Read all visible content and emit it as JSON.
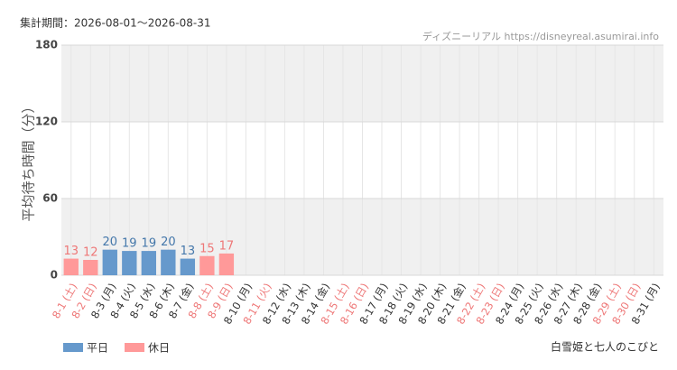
{
  "chart_data": {
    "type": "bar",
    "title": "集計期間：2026-08-01～2026-08-31",
    "source": "ディズニーリアル https://disneyreal.asumirai.info",
    "y_label": "平均待ち時間（分）",
    "attraction": "白雪姫と七人のこびと",
    "categories": [
      "8-1 (土)",
      "8-2 (日)",
      "8-3 (月)",
      "8-4 (火)",
      "8-5 (水)",
      "8-6 (木)",
      "8-7 (金)",
      "8-8 (土)",
      "8-9 (日)",
      "8-10 (月)",
      "8-11 (火)",
      "8-12 (水)",
      "8-13 (木)",
      "8-14 (金)",
      "8-15 (土)",
      "8-16 (日)",
      "8-17 (月)",
      "8-18 (火)",
      "8-19 (水)",
      "8-20 (木)",
      "8-21 (金)",
      "8-22 (土)",
      "8-23 (日)",
      "8-24 (月)",
      "8-25 (火)",
      "8-26 (水)",
      "8-27 (木)",
      "8-28 (金)",
      "8-29 (土)",
      "8-30 (日)",
      "8-31 (月)"
    ],
    "category_colors": [
      "#ee7777",
      "#ee7777",
      "#333333",
      "#333333",
      "#333333",
      "#333333",
      "#333333",
      "#ee7777",
      "#ee7777",
      "#333333",
      "#ee7777",
      "#333333",
      "#333333",
      "#333333",
      "#ee7777",
      "#ee7777",
      "#333333",
      "#333333",
      "#333333",
      "#333333",
      "#333333",
      "#ee7777",
      "#ee7777",
      "#333333",
      "#333333",
      "#333333",
      "#333333",
      "#333333",
      "#ee7777",
      "#ee7777",
      "#333333"
    ],
    "series": [
      {
        "name": "平日",
        "color": "#6699cc",
        "label_color": "#4477aa",
        "values": [
          null,
          null,
          20,
          19,
          19,
          20,
          13,
          null,
          null,
          null,
          null,
          null,
          null,
          null,
          null,
          null,
          null,
          null,
          null,
          null,
          null,
          null,
          null,
          null,
          null,
          null,
          null,
          null,
          null,
          null,
          null
        ]
      },
      {
        "name": "休日",
        "color": "#ff9999",
        "label_color": "#ee7777",
        "values": [
          13,
          12,
          null,
          null,
          null,
          null,
          null,
          15,
          17,
          null,
          null,
          null,
          null,
          null,
          null,
          null,
          null,
          null,
          null,
          null,
          null,
          null,
          null,
          null,
          null,
          null,
          null,
          null,
          null,
          null,
          null
        ]
      }
    ],
    "ylim": [
      0,
      180
    ],
    "yticks": [
      0,
      60,
      120,
      180
    ],
    "grid": true,
    "band_color": "#f0f0f0"
  }
}
